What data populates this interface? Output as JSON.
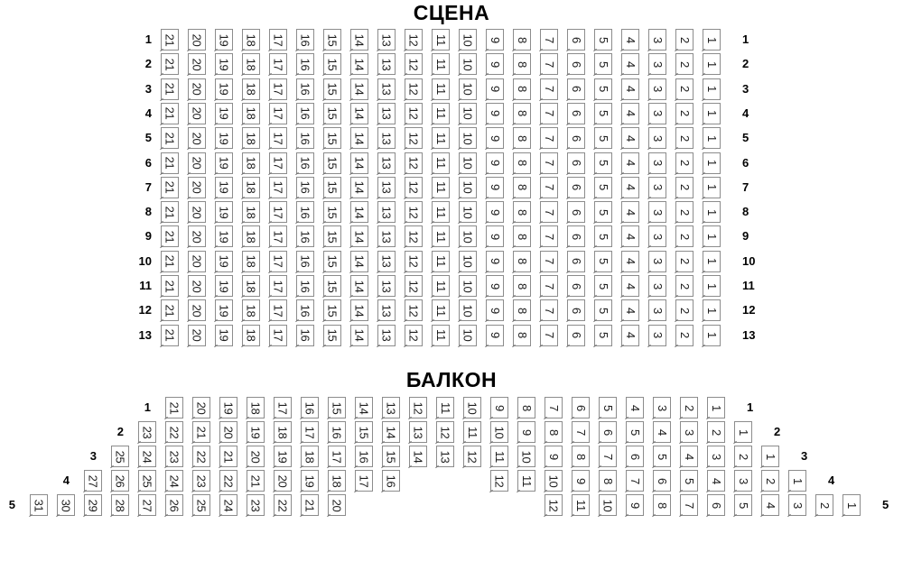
{
  "stage": {
    "title": "СЦЕНА",
    "rows": [
      {
        "label": "1",
        "segments": [
          {
            "col": 0,
            "seats": [
              21,
              20,
              19,
              18,
              17,
              16,
              15,
              14,
              13,
              12,
              11,
              10,
              9,
              8,
              7,
              6,
              5,
              4,
              3,
              2,
              1
            ]
          }
        ]
      },
      {
        "label": "2",
        "segments": [
          {
            "col": 0,
            "seats": [
              21,
              20,
              19,
              18,
              17,
              16,
              15,
              14,
              13,
              12,
              11,
              10,
              9,
              8,
              7,
              6,
              5,
              4,
              3,
              2,
              1
            ]
          }
        ]
      },
      {
        "label": "3",
        "segments": [
          {
            "col": 0,
            "seats": [
              21,
              20,
              19,
              18,
              17,
              16,
              15,
              14,
              13,
              12,
              11,
              10,
              9,
              8,
              7,
              6,
              5,
              4,
              3,
              2,
              1
            ]
          }
        ]
      },
      {
        "label": "4",
        "segments": [
          {
            "col": 0,
            "seats": [
              21,
              20,
              19,
              18,
              17,
              16,
              15,
              14,
              13,
              12,
              11,
              10,
              9,
              8,
              7,
              6,
              5,
              4,
              3,
              2,
              1
            ]
          }
        ]
      },
      {
        "label": "5",
        "segments": [
          {
            "col": 0,
            "seats": [
              21,
              20,
              19,
              18,
              17,
              16,
              15,
              14,
              13,
              12,
              11,
              10,
              9,
              8,
              7,
              6,
              5,
              4,
              3,
              2,
              1
            ]
          }
        ]
      },
      {
        "label": "6",
        "segments": [
          {
            "col": 0,
            "seats": [
              21,
              20,
              19,
              18,
              17,
              16,
              15,
              14,
              13,
              12,
              11,
              10,
              9,
              8,
              7,
              6,
              5,
              4,
              3,
              2,
              1
            ]
          }
        ]
      },
      {
        "label": "7",
        "segments": [
          {
            "col": 0,
            "seats": [
              21,
              20,
              19,
              18,
              17,
              16,
              15,
              14,
              13,
              12,
              11,
              10,
              9,
              8,
              7,
              6,
              5,
              4,
              3,
              2,
              1
            ]
          }
        ]
      },
      {
        "label": "8",
        "segments": [
          {
            "col": 0,
            "seats": [
              21,
              20,
              19,
              18,
              17,
              16,
              15,
              14,
              13,
              12,
              11,
              10,
              9,
              8,
              7,
              6,
              5,
              4,
              3,
              2,
              1
            ]
          }
        ]
      },
      {
        "label": "9",
        "segments": [
          {
            "col": 0,
            "seats": [
              21,
              20,
              19,
              18,
              17,
              16,
              15,
              14,
              13,
              12,
              11,
              10,
              9,
              8,
              7,
              6,
              5,
              4,
              3,
              2,
              1
            ]
          }
        ]
      },
      {
        "label": "10",
        "segments": [
          {
            "col": 0,
            "seats": [
              21,
              20,
              19,
              18,
              17,
              16,
              15,
              14,
              13,
              12,
              11,
              10,
              9,
              8,
              7,
              6,
              5,
              4,
              3,
              2,
              1
            ]
          }
        ]
      },
      {
        "label": "11",
        "segments": [
          {
            "col": 0,
            "seats": [
              21,
              20,
              19,
              18,
              17,
              16,
              15,
              14,
              13,
              12,
              11,
              10,
              9,
              8,
              7,
              6,
              5,
              4,
              3,
              2,
              1
            ]
          }
        ]
      },
      {
        "label": "12",
        "segments": [
          {
            "col": 0,
            "seats": [
              21,
              20,
              19,
              18,
              17,
              16,
              15,
              14,
              13,
              12,
              11,
              10,
              9,
              8,
              7,
              6,
              5,
              4,
              3,
              2,
              1
            ]
          }
        ]
      },
      {
        "label": "13",
        "segments": [
          {
            "col": 0,
            "seats": [
              21,
              20,
              19,
              18,
              17,
              16,
              15,
              14,
              13,
              12,
              11,
              10,
              9,
              8,
              7,
              6,
              5,
              4,
              3,
              2,
              1
            ]
          }
        ]
      }
    ]
  },
  "balcony": {
    "title": "БАЛКОН",
    "rows": [
      {
        "label": "1",
        "segments": [
          {
            "col": 5,
            "seats": [
              21,
              20,
              19,
              18,
              17,
              16,
              15,
              14,
              13,
              12,
              11,
              10,
              9,
              8,
              7,
              6,
              5,
              4,
              3,
              2,
              1
            ]
          }
        ]
      },
      {
        "label": "2",
        "segments": [
          {
            "col": 4,
            "seats": [
              23,
              22,
              21,
              20,
              19,
              18,
              17,
              16,
              15,
              14,
              13,
              12,
              11,
              10,
              9,
              8,
              7,
              6,
              5,
              4,
              3,
              2,
              1
            ]
          }
        ]
      },
      {
        "label": "3",
        "segments": [
          {
            "col": 3,
            "seats": [
              25,
              24,
              23,
              22,
              21,
              20,
              19,
              18,
              17,
              16,
              15,
              14,
              13,
              12,
              11,
              10,
              9,
              8,
              7,
              6,
              5,
              4,
              3,
              2,
              1
            ]
          }
        ]
      },
      {
        "label": "4",
        "segments": [
          {
            "col": 2,
            "seats": [
              27,
              26,
              25,
              24,
              23,
              22,
              21,
              20,
              19,
              18,
              17,
              16
            ]
          },
          {
            "col": 17,
            "seats": [
              12,
              11,
              10,
              9,
              8,
              7,
              6,
              5,
              4,
              3,
              2,
              1
            ]
          }
        ]
      },
      {
        "label": "5",
        "segments": [
          {
            "col": 0,
            "seats": [
              31,
              30,
              29,
              28,
              27,
              26,
              25,
              24,
              23,
              22,
              21,
              20
            ]
          },
          {
            "col": 19,
            "seats": [
              12,
              11,
              10,
              9,
              8,
              7,
              6,
              5,
              4,
              3,
              2,
              1
            ]
          }
        ]
      }
    ]
  }
}
